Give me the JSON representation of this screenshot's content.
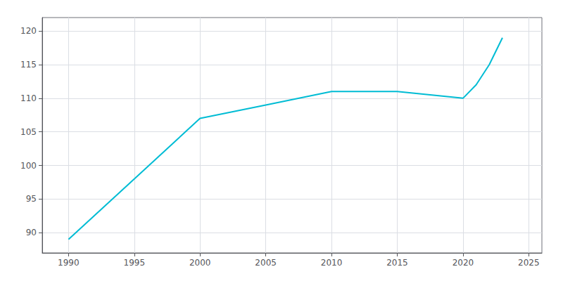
{
  "chart_data": {
    "type": "line",
    "x": [
      1990,
      1995,
      2000,
      2005,
      2010,
      2015,
      2020,
      2021,
      2022,
      2023
    ],
    "values": [
      89,
      98,
      107,
      109,
      111,
      111,
      110,
      112,
      115,
      119
    ],
    "color": "#00bcd4",
    "xlim": [
      1988,
      2026
    ],
    "ylim": [
      87,
      122
    ],
    "xticks": [
      1990,
      1995,
      2000,
      2005,
      2010,
      2015,
      2020,
      2025
    ],
    "yticks": [
      90,
      95,
      100,
      105,
      110,
      115,
      120
    ],
    "grid": true
  }
}
